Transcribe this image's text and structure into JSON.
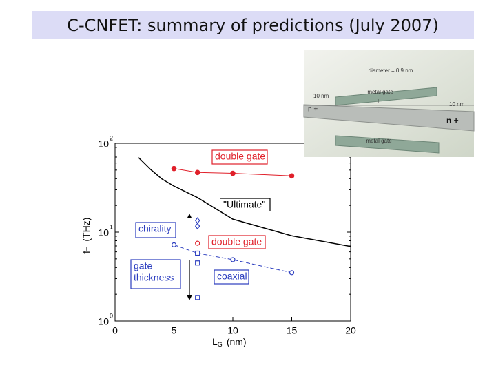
{
  "slide_title": "C-CNFET: summary of predictions (July 2007)",
  "chart_data": {
    "type": "line",
    "x_label": {
      "main": "L",
      "sub": "G",
      "unit": "(nm)"
    },
    "y_label": {
      "main": "f",
      "sub": "T",
      "unit": "(THz)"
    },
    "xlim": [
      0,
      20
    ],
    "xticks": [
      0,
      5,
      10,
      15,
      20
    ],
    "ylim": [
      1,
      100
    ],
    "log_y": true,
    "yticks": [
      {
        "value": 1,
        "label": "10",
        "exponent": "0"
      },
      {
        "value": 10,
        "label": "10",
        "exponent": "1"
      },
      {
        "value": 100,
        "label": "10",
        "exponent": "2"
      }
    ],
    "yminor": [
      2,
      3,
      4,
      5,
      6,
      7,
      8,
      9,
      20,
      30,
      40,
      50,
      60,
      70,
      80,
      90
    ],
    "series": [
      {
        "x": [
          5,
          7,
          10,
          15
        ],
        "values": [
          52,
          47,
          46,
          43
        ],
        "color": "#e0202a",
        "marker": "filled-circle",
        "line": "solid"
      },
      {
        "x": [
          2,
          3,
          4,
          5,
          7,
          10,
          15,
          20
        ],
        "values": [
          69,
          51,
          39.5,
          33,
          24.5,
          14,
          9.1,
          6.9
        ],
        "color": "#000000",
        "marker": "none",
        "line": "solid"
      },
      {
        "x": [
          5,
          7,
          10,
          15
        ],
        "values": [
          7.2,
          5.8,
          4.9,
          3.5
        ],
        "color": "#2b3dbf",
        "marker": "open-circle",
        "line": "dashed"
      },
      {
        "x": [
          7,
          7
        ],
        "values": [
          13.5,
          11.7
        ],
        "color": "#2b3dbf",
        "marker": "open-diamond",
        "line": "none"
      },
      {
        "x": [
          7
        ],
        "values": [
          7.5
        ],
        "color": "#e0202a",
        "marker": "open-circle",
        "line": "none"
      },
      {
        "x": [
          7,
          7,
          7
        ],
        "values": [
          5.8,
          4.5,
          1.84
        ],
        "color": "#2b3dbf",
        "marker": "open-square",
        "line": "none"
      }
    ],
    "annotations": [
      {
        "lines": [
          "double gate"
        ],
        "color": "#e0202a"
      },
      {
        "lines": [
          "\"Ultimate\""
        ],
        "color": "#000000"
      },
      {
        "lines": [
          "chirality"
        ],
        "color": "#2b3dbf"
      },
      {
        "lines": [
          "double gate"
        ],
        "color": "#e0202a"
      },
      {
        "lines": [
          "gate",
          "thickness"
        ],
        "color": "#2b3dbf"
      },
      {
        "lines": [
          "coaxial"
        ],
        "color": "#2b3dbf"
      }
    ]
  },
  "inset": {
    "diameter": "diameter = 0.9 nm",
    "top_gate": "metal gate",
    "left_length": "10 nm",
    "left_doping": "n +",
    "gate_length": "L",
    "right_length": "10 nm",
    "right_doping": "n +",
    "bottom_gate": "metal gate"
  }
}
